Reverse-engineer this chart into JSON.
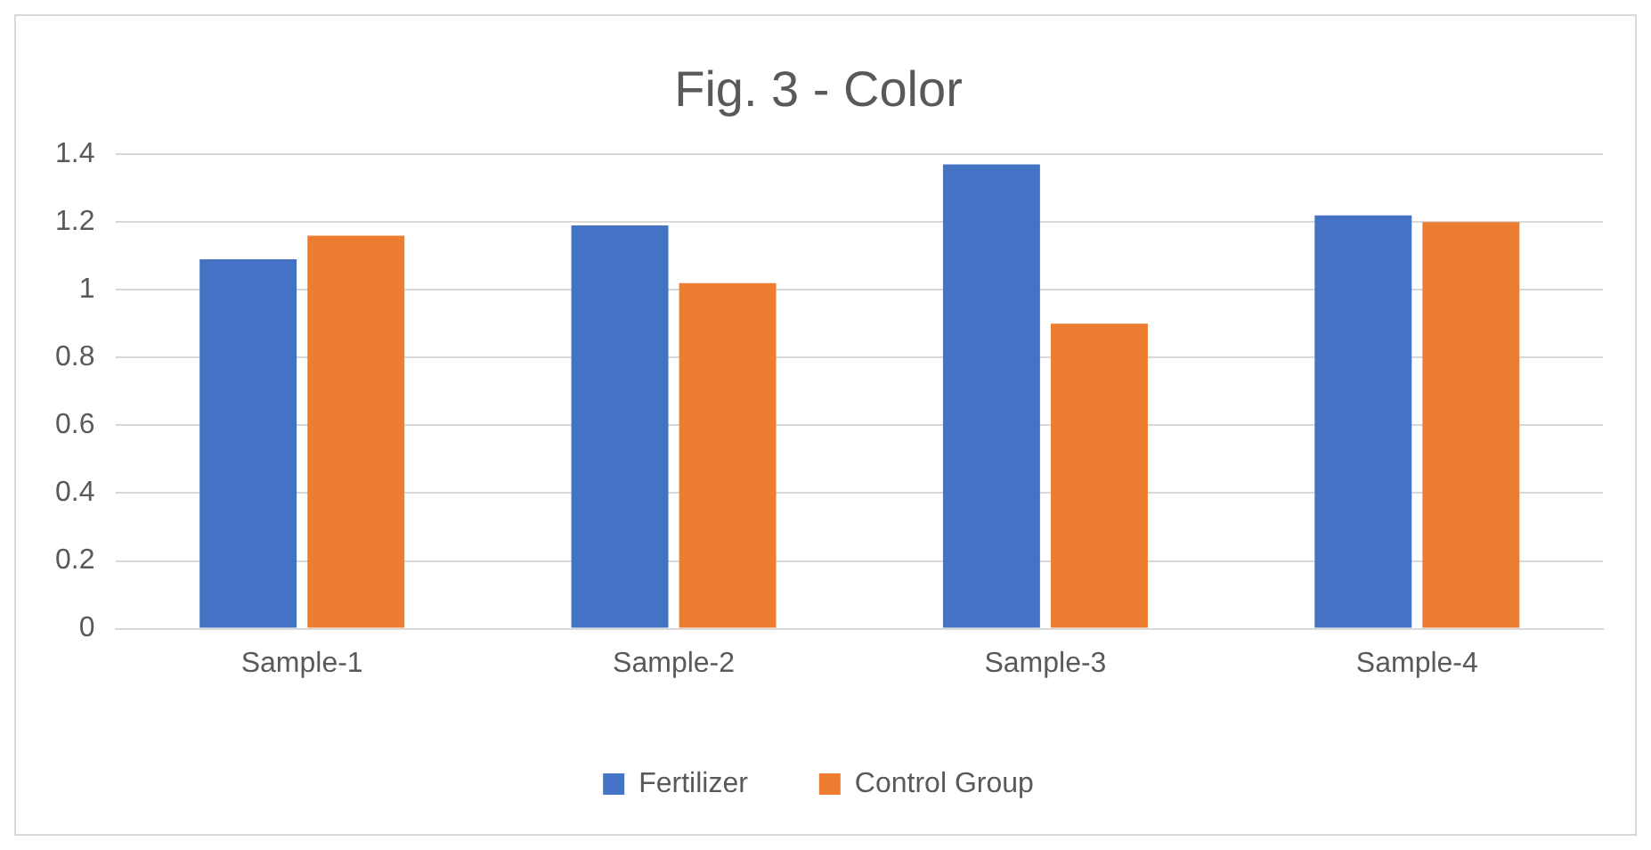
{
  "chart_data": {
    "type": "bar",
    "title": "Fig. 3 - Color",
    "categories": [
      "Sample-1",
      "Sample-2",
      "Sample-3",
      "Sample-4"
    ],
    "series": [
      {
        "name": "Fertilizer",
        "color": "#4472c4",
        "values": [
          1.09,
          1.19,
          1.37,
          1.22
        ]
      },
      {
        "name": "Control Group",
        "color": "#ed7d31",
        "values": [
          1.16,
          1.02,
          0.9,
          1.2
        ]
      }
    ],
    "ylim": [
      0,
      1.4
    ],
    "yticks": [
      0,
      0.2,
      0.4,
      0.6,
      0.8,
      1,
      1.2,
      1.4
    ],
    "grid": "y",
    "legend": "bottom"
  }
}
